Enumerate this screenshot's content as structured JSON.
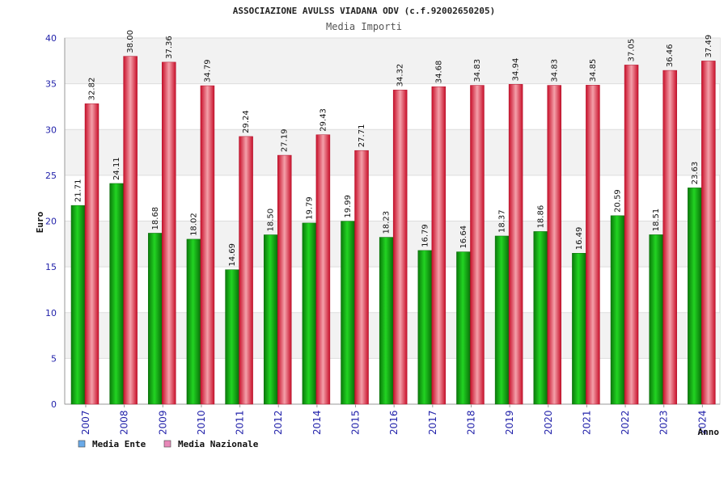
{
  "chart_data": {
    "type": "bar",
    "title": "ASSOCIAZIONE AVULSS VIADANA ODV (c.f.92002650205)",
    "subtitle": "Media Importi",
    "xlabel": "Anno",
    "ylabel": "Euro",
    "ylim": [
      0,
      40
    ],
    "yticks": [
      "0",
      "5",
      "10",
      "15",
      "20",
      "25",
      "30",
      "35",
      "40"
    ],
    "grid": true,
    "legend_position": "bottom-left",
    "categories": [
      "2007",
      "2008",
      "2009",
      "2010",
      "2011",
      "2012",
      "2014",
      "2015",
      "2016",
      "2017",
      "2018",
      "2019",
      "2020",
      "2021",
      "2022",
      "2023",
      "2024"
    ],
    "series": [
      {
        "name": "Media Ente",
        "color": "#12a812",
        "values": [
          21.71,
          24.11,
          18.68,
          18.02,
          14.69,
          18.5,
          19.79,
          19.99,
          18.23,
          16.79,
          16.64,
          18.37,
          18.86,
          16.49,
          20.59,
          18.51,
          23.63
        ],
        "labels": [
          "21.71",
          "24.11",
          "18.68",
          "18.02",
          "14.69",
          "18.50",
          "19.79",
          "19.99",
          "18.23",
          "16.79",
          "16.64",
          "18.37",
          "18.86",
          "16.49",
          "20.59",
          "18.51",
          "23.63"
        ]
      },
      {
        "name": "Media Nazionale",
        "color": "#e8283a",
        "values": [
          32.82,
          38.0,
          37.36,
          34.79,
          29.24,
          27.19,
          29.43,
          27.71,
          34.32,
          34.68,
          34.83,
          34.94,
          34.83,
          34.85,
          37.05,
          36.46,
          37.49
        ],
        "labels": [
          "32.82",
          "38.00",
          "37.36",
          "34.79",
          "29.24",
          "27.19",
          "29.43",
          "27.71",
          "34.32",
          "34.68",
          "34.83",
          "34.94",
          "34.83",
          "34.85",
          "37.05",
          "36.46",
          "37.49"
        ]
      }
    ],
    "legend_swatch_colors": [
      "#6aaae8",
      "#e888b8"
    ]
  }
}
